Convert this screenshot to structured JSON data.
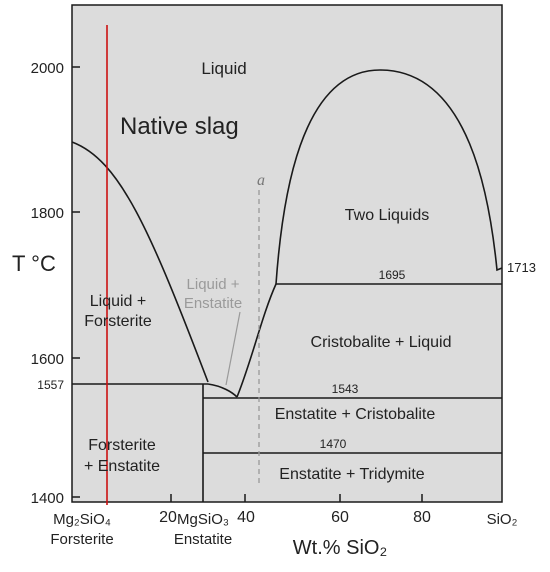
{
  "y_axis": {
    "label": "T °C",
    "ticks": [
      {
        "label": "1400",
        "value": 1400
      },
      {
        "label": "1600",
        "value": 1600
      },
      {
        "label": "1800",
        "value": 1800
      },
      {
        "label": "2000",
        "value": 2000
      }
    ]
  },
  "x_axis": {
    "label": "Wt.% SiO₂",
    "ticks": [
      {
        "label": "20",
        "value": 20
      },
      {
        "label": "40",
        "value": 40
      },
      {
        "label": "60",
        "value": 60
      },
      {
        "label": "80",
        "value": 80
      }
    ],
    "left_end": {
      "formula": "Mg₂SiO₄",
      "name": "Forsterite"
    },
    "mid_phase": {
      "formula": "MgSiO₃",
      "name": "Enstatite"
    },
    "right_end": {
      "formula": "SiO₂"
    }
  },
  "regions": {
    "liquid": "Liquid",
    "two_liquids": "Two Liquids",
    "liquid_forsterite": [
      "Liquid +",
      "Forsterite"
    ],
    "liquid_enstatite": [
      "Liquid +",
      "Enstatite"
    ],
    "cristobalite_liquid": "Cristobalite + Liquid",
    "enstatite_cristobalite": "Enstatite + Cristobalite",
    "forsterite_enstatite": [
      "Forsterite",
      "+ Enstatite"
    ],
    "enstatite_tridymite": "Enstatite + Tridymite"
  },
  "temperatures": {
    "t1557": "1557",
    "t1543": "1543",
    "t1695": "1695",
    "t1470": "1470",
    "t1713": "1713"
  },
  "annotations": {
    "native_slag": "Native slag",
    "composition_marker": "a"
  },
  "colors": {
    "background": "#dcdcdc",
    "line": "#1a1a1a",
    "native_slag_line": "#cc1111",
    "faded_label": "#9a9a9a",
    "dashed_marker": "#999999"
  }
}
